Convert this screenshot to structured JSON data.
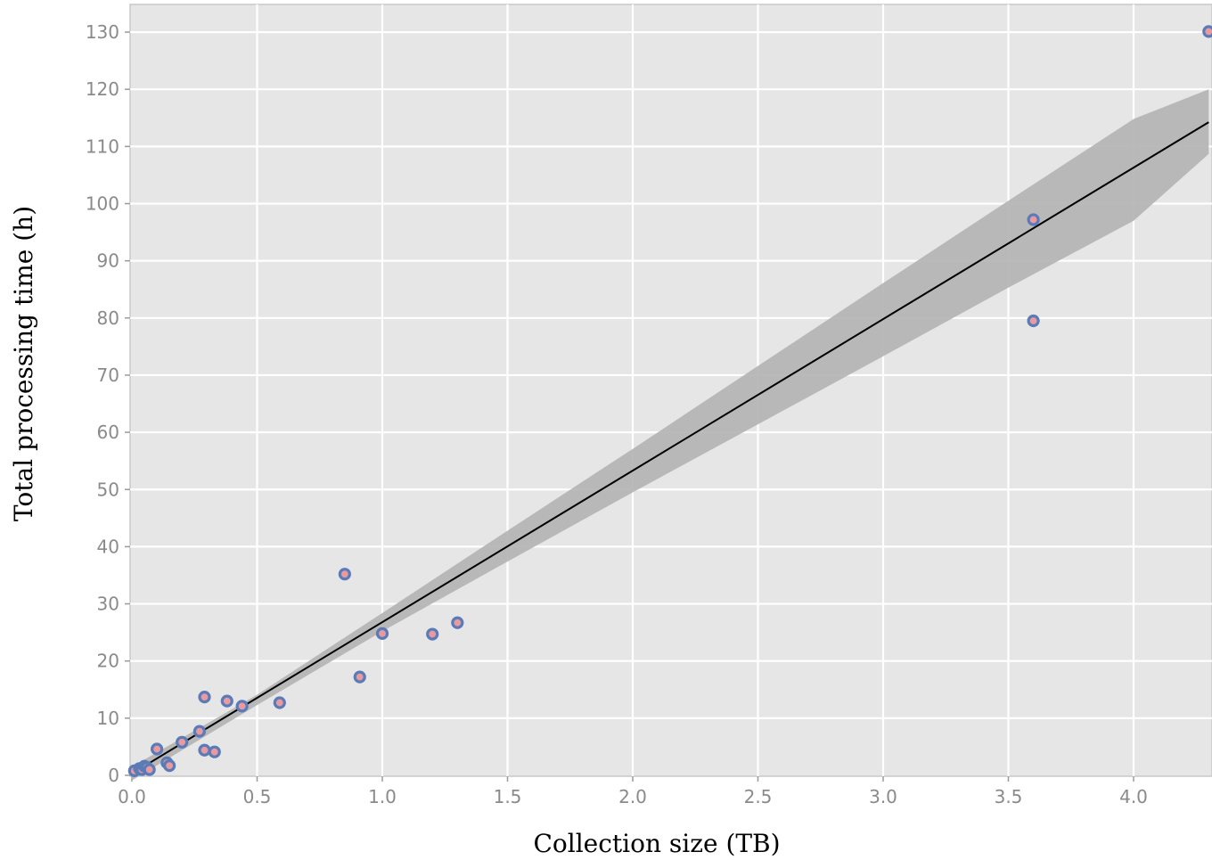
{
  "chart_data": {
    "type": "scatter",
    "title": "",
    "xlabel": "Collection size (TB)",
    "ylabel": "Total processing time (h)",
    "xlim": [
      0.0,
      4.3
    ],
    "ylim": [
      0,
      135
    ],
    "x_ticks": [
      0.0,
      0.5,
      1.0,
      1.5,
      2.0,
      2.5,
      3.0,
      3.5,
      4.0
    ],
    "x_tick_labels": [
      "0.0",
      "0.5",
      "1.0",
      "1.5",
      "2.0",
      "2.5",
      "3.0",
      "3.5",
      "4.0"
    ],
    "y_ticks": [
      0,
      10,
      20,
      30,
      40,
      50,
      60,
      70,
      80,
      90,
      100,
      110,
      120,
      130
    ],
    "y_tick_labels": [
      "0",
      "10",
      "20",
      "30",
      "40",
      "50",
      "60",
      "70",
      "80",
      "90",
      "100",
      "110",
      "120",
      "130"
    ],
    "grid": true,
    "legend": "none",
    "colors": {
      "panel_background": "#e6e6e6",
      "grid": "#ffffff",
      "point_stroke": "#5a7bb8",
      "point_fill": "#e89aa0",
      "regression_line": "#000000",
      "confidence_band": "#b3b3b3"
    },
    "points": [
      {
        "x": 0.01,
        "y": 0.8
      },
      {
        "x": 0.03,
        "y": 1.2
      },
      {
        "x": 0.04,
        "y": 1.0
      },
      {
        "x": 0.05,
        "y": 1.6
      },
      {
        "x": 0.06,
        "y": 1.4
      },
      {
        "x": 0.07,
        "y": 1.0
      },
      {
        "x": 0.1,
        "y": 4.6
      },
      {
        "x": 0.14,
        "y": 2.2
      },
      {
        "x": 0.15,
        "y": 1.7
      },
      {
        "x": 0.2,
        "y": 5.8
      },
      {
        "x": 0.27,
        "y": 7.7
      },
      {
        "x": 0.29,
        "y": 13.7
      },
      {
        "x": 0.29,
        "y": 4.4
      },
      {
        "x": 0.33,
        "y": 4.1
      },
      {
        "x": 0.38,
        "y": 13.0
      },
      {
        "x": 0.44,
        "y": 12.1
      },
      {
        "x": 0.59,
        "y": 12.7
      },
      {
        "x": 0.85,
        "y": 35.2
      },
      {
        "x": 0.91,
        "y": 17.2
      },
      {
        "x": 1.0,
        "y": 24.8
      },
      {
        "x": 1.2,
        "y": 24.7
      },
      {
        "x": 1.3,
        "y": 26.7
      },
      {
        "x": 3.6,
        "y": 97.2
      },
      {
        "x": 3.6,
        "y": 79.5
      },
      {
        "x": 4.3,
        "y": 130.1
      }
    ],
    "fit": {
      "intercept": 0.3,
      "slope": 26.5,
      "band": [
        {
          "x": 0.0,
          "lower": -0.9,
          "upper": 1.5
        },
        {
          "x": 0.5,
          "lower": 12.3,
          "upper": 14.1
        },
        {
          "x": 1.0,
          "lower": 25.2,
          "upper": 28.4
        },
        {
          "x": 1.5,
          "lower": 37.4,
          "upper": 42.8
        },
        {
          "x": 2.0,
          "lower": 49.5,
          "upper": 57.1
        },
        {
          "x": 2.5,
          "lower": 61.4,
          "upper": 71.6
        },
        {
          "x": 3.0,
          "lower": 73.3,
          "upper": 86.1
        },
        {
          "x": 3.5,
          "lower": 85.3,
          "upper": 100.5
        },
        {
          "x": 4.0,
          "lower": 97.0,
          "upper": 114.8
        },
        {
          "x": 4.3,
          "lower": 108.7,
          "upper": 120.0
        }
      ]
    }
  }
}
